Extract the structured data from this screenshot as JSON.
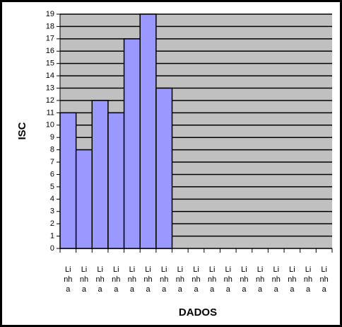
{
  "chart_data": {
    "type": "bar",
    "y_label": "ISC",
    "x_label": "DADOS",
    "categories": [
      "Linha",
      "Linha",
      "Linha",
      "Linha",
      "Linha",
      "Linha",
      "Linha",
      "Linha",
      "Linha",
      "Linha",
      "Linha",
      "Linha",
      "Linha",
      "Linha",
      "Linha",
      "Linha",
      "Linha"
    ],
    "values": [
      11,
      8,
      12,
      11,
      17,
      19,
      13,
      null,
      null,
      null,
      null,
      null,
      null,
      null,
      null,
      null,
      null
    ],
    "color": "#9999ff",
    "plot_background": "#c0c0c0",
    "ylim": [
      0,
      19
    ],
    "yticks": [
      0,
      1,
      2,
      3,
      4,
      5,
      6,
      7,
      8,
      9,
      10,
      11,
      12,
      13,
      14,
      15,
      16,
      17,
      18,
      19
    ],
    "grid": true
  }
}
